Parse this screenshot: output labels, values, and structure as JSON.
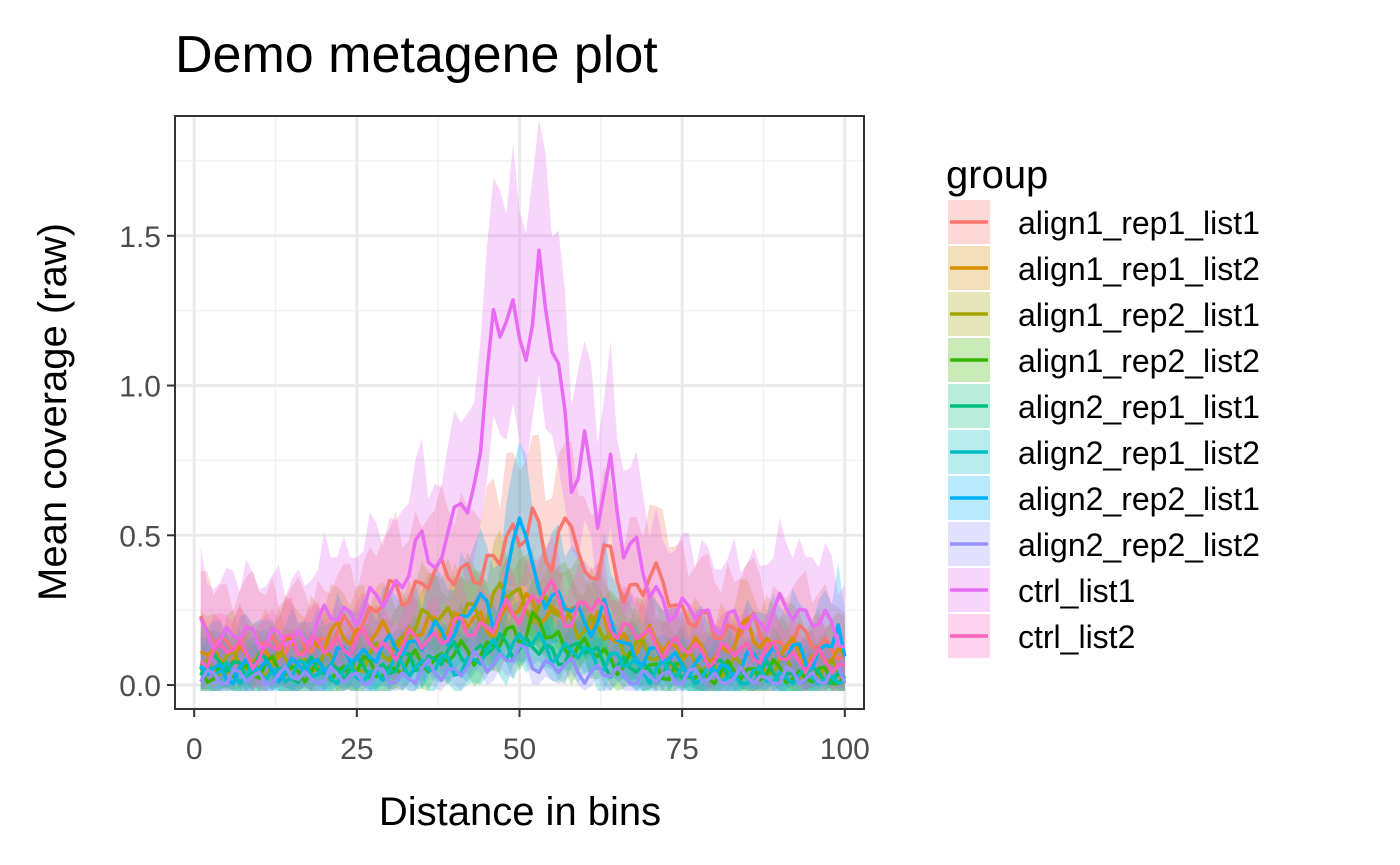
{
  "chart_data": {
    "type": "line",
    "title": "Demo metagene plot",
    "xlabel": "Distance in bins",
    "ylabel": "Mean coverage (raw)",
    "xlim": [
      1,
      100
    ],
    "ylim": [
      -0.08,
      1.9
    ],
    "xticks": [
      0,
      25,
      50,
      75,
      100
    ],
    "xtick_labels": [
      "0",
      "25",
      "50",
      "75",
      "100"
    ],
    "yticks": [
      0,
      0.5,
      1,
      1.5
    ],
    "ytick_labels": [
      "0.0",
      "0.5",
      "1.0",
      "1.5"
    ],
    "grid": true,
    "ribbons": true,
    "legend_title": "group",
    "legend_position": "right",
    "series": [
      {
        "name": "align1_rep1_list1",
        "color": "#F8766D",
        "ribbon": 0.45,
        "points": [
          [
            1,
            0.18
          ],
          [
            5,
            0.14
          ],
          [
            10,
            0.16
          ],
          [
            15,
            0.13
          ],
          [
            20,
            0.15
          ],
          [
            25,
            0.2
          ],
          [
            30,
            0.3
          ],
          [
            35,
            0.33
          ],
          [
            40,
            0.4
          ],
          [
            44,
            0.34
          ],
          [
            48,
            0.52
          ],
          [
            50,
            0.45
          ],
          [
            52,
            0.56
          ],
          [
            55,
            0.43
          ],
          [
            58,
            0.55
          ],
          [
            60,
            0.35
          ],
          [
            63,
            0.45
          ],
          [
            66,
            0.3
          ],
          [
            70,
            0.37
          ],
          [
            75,
            0.25
          ],
          [
            80,
            0.18
          ],
          [
            85,
            0.2
          ],
          [
            90,
            0.13
          ],
          [
            95,
            0.17
          ],
          [
            100,
            0.08
          ]
        ]
      },
      {
        "name": "align1_rep1_list2",
        "color": "#D89000",
        "ribbon": 0.35,
        "points": [
          [
            1,
            0.12
          ],
          [
            5,
            0.08
          ],
          [
            10,
            0.1
          ],
          [
            15,
            0.12
          ],
          [
            20,
            0.15
          ],
          [
            25,
            0.18
          ],
          [
            30,
            0.16
          ],
          [
            35,
            0.18
          ],
          [
            40,
            0.22
          ],
          [
            45,
            0.2
          ],
          [
            48,
            0.23
          ],
          [
            52,
            0.28
          ],
          [
            55,
            0.22
          ],
          [
            60,
            0.25
          ],
          [
            65,
            0.15
          ],
          [
            70,
            0.15
          ],
          [
            75,
            0.12
          ],
          [
            80,
            0.1
          ],
          [
            85,
            0.18
          ],
          [
            90,
            0.12
          ],
          [
            95,
            0.1
          ],
          [
            100,
            0.08
          ]
        ]
      },
      {
        "name": "align1_rep2_list1",
        "color": "#A3A500",
        "ribbon": 0.35,
        "points": [
          [
            1,
            0.06
          ],
          [
            5,
            0.08
          ],
          [
            10,
            0.06
          ],
          [
            15,
            0.08
          ],
          [
            20,
            0.07
          ],
          [
            25,
            0.06
          ],
          [
            30,
            0.12
          ],
          [
            35,
            0.2
          ],
          [
            37,
            0.26
          ],
          [
            40,
            0.22
          ],
          [
            45,
            0.25
          ],
          [
            47,
            0.32
          ],
          [
            50,
            0.28
          ],
          [
            55,
            0.25
          ],
          [
            60,
            0.2
          ],
          [
            65,
            0.15
          ],
          [
            70,
            0.1
          ],
          [
            75,
            0.08
          ],
          [
            80,
            0.06
          ],
          [
            85,
            0.05
          ],
          [
            90,
            0.06
          ],
          [
            95,
            0.05
          ],
          [
            100,
            0.04
          ]
        ]
      },
      {
        "name": "align1_rep2_list2",
        "color": "#39B600",
        "ribbon": 0.3,
        "points": [
          [
            1,
            0.05
          ],
          [
            5,
            0.04
          ],
          [
            10,
            0.06
          ],
          [
            15,
            0.05
          ],
          [
            20,
            0.04
          ],
          [
            25,
            0.06
          ],
          [
            30,
            0.05
          ],
          [
            35,
            0.08
          ],
          [
            40,
            0.1
          ],
          [
            45,
            0.12
          ],
          [
            50,
            0.18
          ],
          [
            52,
            0.22
          ],
          [
            55,
            0.15
          ],
          [
            60,
            0.12
          ],
          [
            65,
            0.08
          ],
          [
            70,
            0.06
          ],
          [
            75,
            0.04
          ],
          [
            80,
            0.03
          ],
          [
            85,
            0.05
          ],
          [
            90,
            0.04
          ],
          [
            95,
            0.03
          ],
          [
            100,
            0.02
          ]
        ]
      },
      {
        "name": "align2_rep1_list1",
        "color": "#00BF7D",
        "ribbon": 0.25,
        "points": [
          [
            1,
            0.08
          ],
          [
            5,
            0.06
          ],
          [
            10,
            0.07
          ],
          [
            15,
            0.04
          ],
          [
            20,
            0.06
          ],
          [
            25,
            0.05
          ],
          [
            30,
            0.06
          ],
          [
            35,
            0.08
          ],
          [
            40,
            0.1
          ],
          [
            45,
            0.12
          ],
          [
            50,
            0.14
          ],
          [
            55,
            0.1
          ],
          [
            60,
            0.12
          ],
          [
            65,
            0.06
          ],
          [
            70,
            0.05
          ],
          [
            75,
            0.04
          ],
          [
            80,
            0.05
          ],
          [
            85,
            0.03
          ],
          [
            90,
            0.04
          ],
          [
            95,
            0.02
          ],
          [
            100,
            0.03
          ]
        ]
      },
      {
        "name": "align2_rep1_list2",
        "color": "#00BFC4",
        "ribbon": 0.3,
        "points": [
          [
            1,
            0.04
          ],
          [
            5,
            0.05
          ],
          [
            10,
            0.03
          ],
          [
            15,
            0.05
          ],
          [
            20,
            0.04
          ],
          [
            25,
            0.03
          ],
          [
            30,
            0.05
          ],
          [
            35,
            0.07
          ],
          [
            40,
            0.06
          ],
          [
            45,
            0.1
          ],
          [
            50,
            0.15
          ],
          [
            55,
            0.12
          ],
          [
            60,
            0.1
          ],
          [
            65,
            0.08
          ],
          [
            70,
            0.05
          ],
          [
            75,
            0.04
          ],
          [
            80,
            0.03
          ],
          [
            85,
            0.02
          ],
          [
            90,
            0.03
          ],
          [
            95,
            0.02
          ],
          [
            100,
            0.02
          ]
        ]
      },
      {
        "name": "align2_rep2_list1",
        "color": "#00B0F6",
        "ribbon": 0.45,
        "points": [
          [
            1,
            0.05
          ],
          [
            5,
            0.04
          ],
          [
            10,
            0.06
          ],
          [
            15,
            0.05
          ],
          [
            20,
            0.08
          ],
          [
            25,
            0.1
          ],
          [
            30,
            0.12
          ],
          [
            35,
            0.15
          ],
          [
            40,
            0.18
          ],
          [
            43,
            0.28
          ],
          [
            46,
            0.22
          ],
          [
            48,
            0.35
          ],
          [
            50,
            0.59
          ],
          [
            52,
            0.35
          ],
          [
            55,
            0.3
          ],
          [
            58,
            0.25
          ],
          [
            60,
            0.2
          ],
          [
            63,
            0.25
          ],
          [
            66,
            0.12
          ],
          [
            70,
            0.1
          ],
          [
            75,
            0.08
          ],
          [
            80,
            0.05
          ],
          [
            85,
            0.07
          ],
          [
            90,
            0.12
          ],
          [
            95,
            0.08
          ],
          [
            99,
            0.19
          ],
          [
            100,
            0.05
          ]
        ]
      },
      {
        "name": "align2_rep2_list2",
        "color": "#9590FF",
        "ribbon": 0.2,
        "points": [
          [
            1,
            0.02
          ],
          [
            5,
            0.03
          ],
          [
            10,
            0.02
          ],
          [
            15,
            0.03
          ],
          [
            20,
            0.02
          ],
          [
            25,
            0.03
          ],
          [
            30,
            0.02
          ],
          [
            35,
            0.04
          ],
          [
            40,
            0.05
          ],
          [
            45,
            0.08
          ],
          [
            50,
            0.1
          ],
          [
            55,
            0.06
          ],
          [
            60,
            0.05
          ],
          [
            65,
            0.03
          ],
          [
            70,
            0.02
          ],
          [
            75,
            0.03
          ],
          [
            80,
            0.02
          ],
          [
            85,
            0.02
          ],
          [
            90,
            0.02
          ],
          [
            95,
            0.03
          ],
          [
            100,
            0.02
          ]
        ]
      },
      {
        "name": "ctrl_list1",
        "color": "#E76BF3",
        "ribbon": 0.5,
        "points": [
          [
            1,
            0.18
          ],
          [
            5,
            0.16
          ],
          [
            10,
            0.17
          ],
          [
            15,
            0.14
          ],
          [
            20,
            0.22
          ],
          [
            25,
            0.25
          ],
          [
            30,
            0.3
          ],
          [
            33,
            0.4
          ],
          [
            35,
            0.46
          ],
          [
            38,
            0.4
          ],
          [
            40,
            0.65
          ],
          [
            42,
            0.5
          ],
          [
            44,
            0.85
          ],
          [
            46,
            1.23
          ],
          [
            48,
            1.22
          ],
          [
            50,
            1.12
          ],
          [
            52,
            1.25
          ],
          [
            53,
            1.4
          ],
          [
            55,
            1.15
          ],
          [
            57,
            0.85
          ],
          [
            58,
            0.7
          ],
          [
            60,
            0.82
          ],
          [
            62,
            0.55
          ],
          [
            64,
            0.7
          ],
          [
            66,
            0.5
          ],
          [
            68,
            0.45
          ],
          [
            70,
            0.3
          ],
          [
            75,
            0.25
          ],
          [
            80,
            0.22
          ],
          [
            85,
            0.2
          ],
          [
            90,
            0.25
          ],
          [
            95,
            0.24
          ],
          [
            100,
            0.14
          ]
        ]
      },
      {
        "name": "ctrl_list2",
        "color": "#FF62BC",
        "ribbon": 0.3,
        "points": [
          [
            1,
            0.1
          ],
          [
            5,
            0.12
          ],
          [
            10,
            0.1
          ],
          [
            15,
            0.15
          ],
          [
            20,
            0.12
          ],
          [
            25,
            0.15
          ],
          [
            30,
            0.12
          ],
          [
            35,
            0.15
          ],
          [
            40,
            0.18
          ],
          [
            45,
            0.2
          ],
          [
            50,
            0.25
          ],
          [
            54,
            0.32
          ],
          [
            58,
            0.22
          ],
          [
            60,
            0.28
          ],
          [
            65,
            0.2
          ],
          [
            70,
            0.15
          ],
          [
            75,
            0.12
          ],
          [
            80,
            0.1
          ],
          [
            85,
            0.12
          ],
          [
            90,
            0.1
          ],
          [
            95,
            0.08
          ],
          [
            100,
            0.06
          ]
        ]
      }
    ]
  }
}
